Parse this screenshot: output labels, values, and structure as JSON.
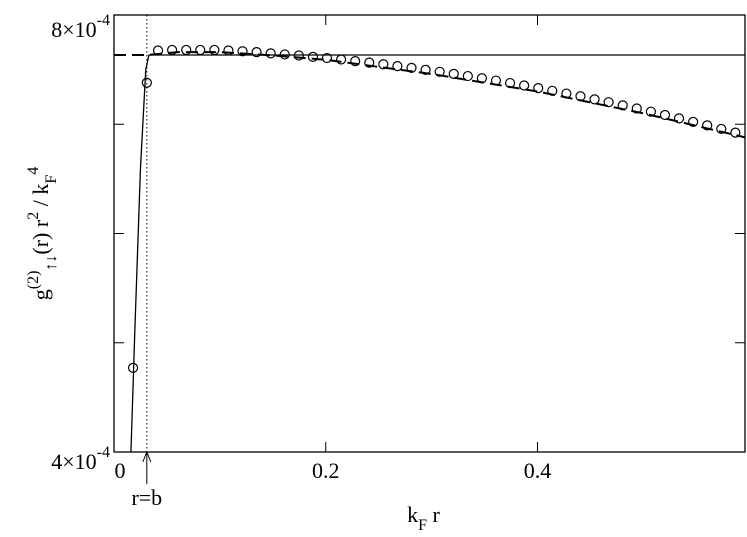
{
  "chart_data": {
    "type": "line",
    "xlabel": [
      {
        "text": "k"
      },
      {
        "text": "F",
        "pos": "sub"
      },
      {
        "text": " r"
      }
    ],
    "ylabel": [
      {
        "text": "g"
      },
      {
        "text": "(2)",
        "pos": "sup"
      },
      {
        "text": "↑↓",
        "pos": "sub"
      },
      {
        "text": "(r)  r"
      },
      {
        "text": "2",
        "pos": "sup"
      },
      {
        "text": " / k"
      },
      {
        "text": "F",
        "pos": "sub"
      },
      {
        "text": "4",
        "pos": "sup"
      }
    ],
    "xlim": [
      0,
      0.596
    ],
    "ylim": [
      0.0004,
      0.0008
    ],
    "xticks": [
      0,
      0.2,
      0.4
    ],
    "yticks": [
      {
        "value": 0.0004,
        "label": "4×10",
        "exponent": "-4"
      },
      {
        "value": 0.0008,
        "label": "8×10",
        "exponent": "-4"
      }
    ],
    "yminor": [
      0.0005,
      0.0006,
      0.0007
    ],
    "series": [
      {
        "type": "line",
        "style": "solid",
        "color": "#000000",
        "x": [
          0.016,
          0.02,
          0.025,
          0.03,
          0.033,
          0.596
        ],
        "values": [
          0.0004,
          0.00052,
          0.00066,
          0.00075,
          0.0007634,
          0.0007634
        ]
      },
      {
        "type": "line",
        "style": "dashed",
        "color": "#000000",
        "x": [
          0,
          0.031,
          0.06,
          0.1,
          0.15,
          0.2,
          0.3,
          0.4,
          0.5,
          0.596
        ],
        "values": [
          0.0007634,
          0.0007634,
          0.000766,
          0.000766,
          0.000763,
          0.000759,
          0.000746,
          0.00073,
          0.00071,
          0.000688
        ]
      },
      {
        "type": "scatter",
        "style": "circles",
        "color": "#000000",
        "x": [
          0.018,
          0.031,
          0.0416,
          0.0549,
          0.0682,
          0.0815,
          0.0948,
          0.1081,
          0.1214,
          0.1347,
          0.148,
          0.1613,
          0.1746,
          0.1879,
          0.2012,
          0.2145,
          0.2278,
          0.2411,
          0.2544,
          0.2677,
          0.281,
          0.2943,
          0.3076,
          0.3209,
          0.3342,
          0.3475,
          0.3608,
          0.3741,
          0.3874,
          0.4007,
          0.414,
          0.4273,
          0.4406,
          0.4539,
          0.4672,
          0.4805,
          0.4938,
          0.5071,
          0.5204,
          0.5337,
          0.547,
          0.5603,
          0.5736,
          0.5869
        ],
        "values": [
          0.000477,
          0.000738,
          0.0007675,
          0.000768,
          0.000768,
          0.000768,
          0.000768,
          0.0007675,
          0.0007668,
          0.000766,
          0.0007649,
          0.0007639,
          0.0007629,
          0.0007617,
          0.0007606,
          0.0007593,
          0.0007578,
          0.0007564,
          0.0007549,
          0.0007532,
          0.0007516,
          0.0007498,
          0.000748,
          0.0007461,
          0.0007441,
          0.0007421,
          0.00074,
          0.0007377,
          0.0007355,
          0.0007331,
          0.0007306,
          0.0007281,
          0.0007256,
          0.0007228,
          0.0007202,
          0.0007173,
          0.0007144,
          0.0007115,
          0.0007085,
          0.0007054,
          0.0007022,
          0.000699,
          0.0006957,
          0.0006923
        ]
      }
    ],
    "annotations": [
      {
        "text": "r=b",
        "x": 0.031
      }
    ]
  }
}
